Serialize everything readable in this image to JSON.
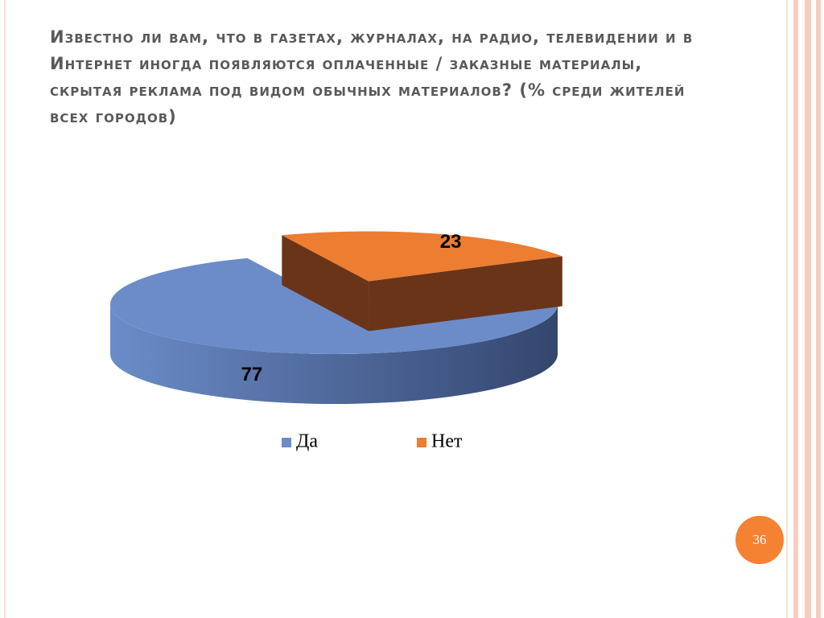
{
  "title": "Известно ли вам, что в газетах, журналах, на радио, телевидении и в Интернет иногда появляются оплаченные / заказные материалы, скрытая реклама под видом обычных материалов? (% среди жителей всех городов)",
  "chart_data": {
    "type": "pie",
    "categories": [
      "Да",
      "Нет"
    ],
    "values": [
      77,
      23
    ],
    "colors": [
      "#6b8cc9",
      "#ed7d31"
    ],
    "side_colors": [
      "#34466e",
      "#6a3419"
    ],
    "legend": "bottom",
    "exploded": [
      false,
      true
    ]
  },
  "slide_number": 36
}
